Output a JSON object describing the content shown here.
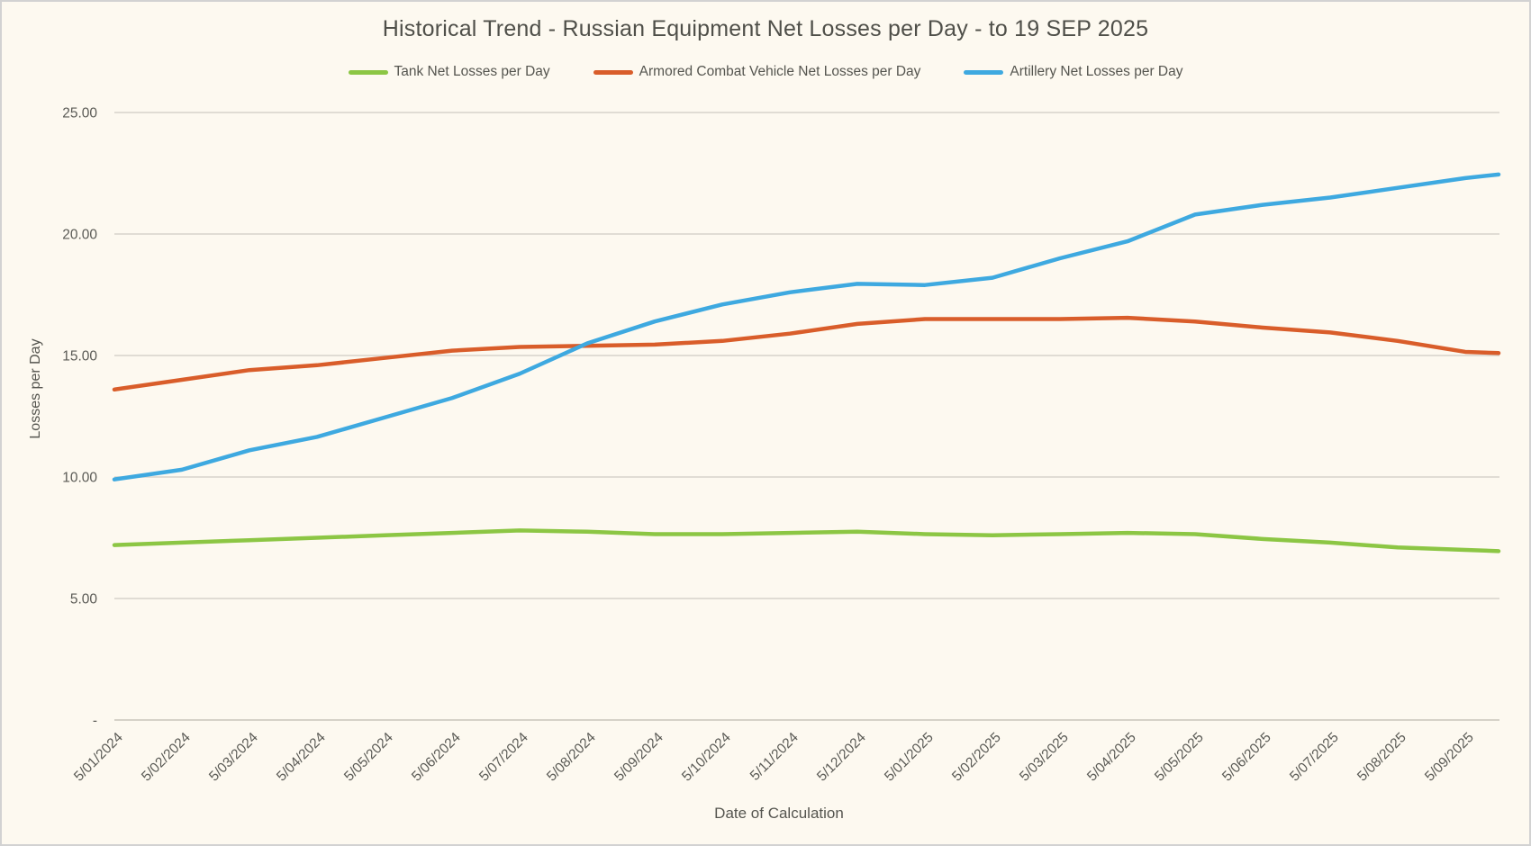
{
  "title": "Historical Trend - Russian Equipment Net Losses per Day - to 19 SEP 2025",
  "legend": [
    {
      "label": "Tank Net Losses per Day",
      "color": "#8CC644"
    },
    {
      "label": "Armored Combat Vehicle Net Losses per Day",
      "color": "#D95D2A"
    },
    {
      "label": "Artillery Net Losses per Day",
      "color": "#3EA9E0"
    }
  ],
  "chart_data": {
    "type": "line",
    "title": "Historical Trend - Russian Equipment Net Losses per Day - to 19 SEP 2025",
    "xlabel": "Date of Calculation",
    "ylabel": "Losses per Day",
    "ylim": [
      0,
      25
    ],
    "ytick_step": 5,
    "ytick_labels": [
      "-",
      "5.00",
      "10.00",
      "15.00",
      "20.00",
      "25.00"
    ],
    "grid": true,
    "legend_position": "top",
    "categories": [
      "5/01/2024",
      "5/02/2024",
      "5/03/2024",
      "5/04/2024",
      "5/05/2024",
      "5/06/2024",
      "5/07/2024",
      "5/08/2024",
      "5/09/2024",
      "5/10/2024",
      "5/11/2024",
      "5/12/2024",
      "5/01/2025",
      "5/02/2025",
      "5/03/2025",
      "5/04/2025",
      "5/05/2025",
      "5/06/2025",
      "5/07/2025",
      "5/08/2025",
      "5/09/2025"
    ],
    "series": [
      {
        "name": "Tank Net Losses per Day",
        "color": "#8CC644",
        "values": [
          7.2,
          7.3,
          7.4,
          7.5,
          7.6,
          7.7,
          7.8,
          7.75,
          7.65,
          7.65,
          7.7,
          7.75,
          7.65,
          7.6,
          7.65,
          7.7,
          7.65,
          7.45,
          7.3,
          7.1,
          7.0
        ],
        "end_value": 6.95
      },
      {
        "name": "Armored Combat Vehicle Net Losses per Day",
        "color": "#D95D2A",
        "values": [
          13.6,
          14.0,
          14.4,
          14.6,
          14.9,
          15.2,
          15.35,
          15.4,
          15.45,
          15.6,
          15.9,
          16.3,
          16.5,
          16.5,
          16.5,
          16.55,
          16.4,
          16.15,
          15.95,
          15.6,
          15.15
        ],
        "end_value": 15.1
      },
      {
        "name": "Artillery Net Losses per Day",
        "color": "#3EA9E0",
        "values": [
          9.9,
          10.3,
          11.1,
          11.65,
          12.45,
          13.25,
          14.25,
          15.5,
          16.4,
          17.1,
          17.6,
          17.95,
          17.9,
          18.2,
          19.0,
          19.7,
          20.8,
          21.2,
          21.5,
          21.9,
          22.3
        ],
        "end_value": 22.45
      }
    ],
    "end_point_label": "19 SEP 2025"
  },
  "colors": {
    "background": "#FDF9F0",
    "border": "#D2D2D2",
    "gridline": "#D6D3CB",
    "baseline": "#C9C5BB",
    "text": "#5A5A55"
  }
}
